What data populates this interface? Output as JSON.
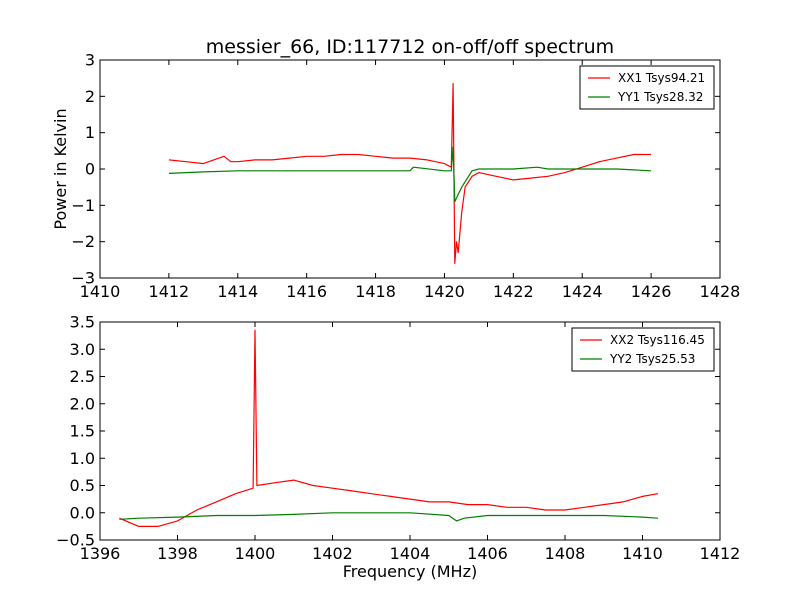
{
  "title": "messier_66, ID:117712 on-off/off spectrum",
  "chart_data": [
    {
      "type": "line",
      "title": "messier_66, ID:117712 on-off/off spectrum",
      "xlabel": "",
      "ylabel": "Power in Kelvin",
      "xlim": [
        1410,
        1428
      ],
      "ylim": [
        -3,
        3
      ],
      "xticks": [
        1410,
        1412,
        1414,
        1416,
        1418,
        1420,
        1422,
        1424,
        1426,
        1428
      ],
      "yticks": [
        -3,
        -2,
        -1,
        0,
        1,
        2,
        3
      ],
      "xtick_labels": [
        "1410",
        "1412",
        "1414",
        "1416",
        "1418",
        "1420",
        "1422",
        "1424",
        "1426",
        "1428"
      ],
      "ytick_labels": [
        "−3",
        "−2",
        "−1",
        "0",
        "1",
        "2",
        "3"
      ],
      "grid": false,
      "legend_position": "top-right",
      "series": [
        {
          "name": "XX1 Tsys94.21",
          "color": "#ff0000",
          "x": [
            1412.0,
            1412.5,
            1413.0,
            1413.3,
            1413.6,
            1413.8,
            1414.0,
            1414.5,
            1415.0,
            1415.5,
            1416.0,
            1416.5,
            1417.0,
            1417.5,
            1418.0,
            1418.5,
            1419.0,
            1419.5,
            1420.0,
            1420.2,
            1420.25,
            1420.3,
            1420.35,
            1420.4,
            1420.5,
            1420.6,
            1420.8,
            1421.0,
            1421.5,
            1422.0,
            1422.5,
            1423.0,
            1423.5,
            1424.0,
            1424.5,
            1425.0,
            1425.5,
            1426.0
          ],
          "y": [
            0.25,
            0.2,
            0.15,
            0.25,
            0.35,
            0.2,
            0.2,
            0.25,
            0.25,
            0.3,
            0.35,
            0.35,
            0.4,
            0.4,
            0.35,
            0.3,
            0.3,
            0.25,
            0.15,
            0.05,
            2.35,
            -2.6,
            -2.0,
            -2.3,
            -1.2,
            -0.5,
            -0.2,
            -0.1,
            -0.2,
            -0.3,
            -0.25,
            -0.2,
            -0.1,
            0.05,
            0.2,
            0.3,
            0.4,
            0.4
          ]
        },
        {
          "name": "YY1 Tsys28.32",
          "color": "#008000",
          "x": [
            1412.0,
            1413.0,
            1414.0,
            1415.0,
            1416.0,
            1417.0,
            1418.0,
            1419.0,
            1419.1,
            1420.0,
            1420.2,
            1420.25,
            1420.3,
            1420.4,
            1420.5,
            1420.8,
            1421.0,
            1422.0,
            1422.7,
            1423.0,
            1424.0,
            1425.0,
            1426.0
          ],
          "y": [
            -0.12,
            -0.08,
            -0.05,
            -0.05,
            -0.05,
            -0.05,
            -0.05,
            -0.05,
            0.05,
            -0.05,
            -0.05,
            0.6,
            -0.9,
            -0.7,
            -0.5,
            -0.05,
            0.0,
            0.0,
            0.05,
            0.0,
            0.0,
            0.0,
            -0.05
          ]
        }
      ]
    },
    {
      "type": "line",
      "title": "",
      "xlabel": "Frequency (MHz)",
      "ylabel": "",
      "xlim": [
        1396,
        1412
      ],
      "ylim": [
        -0.5,
        3.5
      ],
      "xticks": [
        1396,
        1398,
        1400,
        1402,
        1404,
        1406,
        1408,
        1410,
        1412
      ],
      "yticks": [
        -0.5,
        0.0,
        0.5,
        1.0,
        1.5,
        2.0,
        2.5,
        3.0,
        3.5
      ],
      "xtick_labels": [
        "1396",
        "1398",
        "1400",
        "1402",
        "1404",
        "1406",
        "1408",
        "1410",
        "1412"
      ],
      "ytick_labels": [
        "−0.5",
        "0.0",
        "0.5",
        "1.0",
        "1.5",
        "2.0",
        "2.5",
        "3.0",
        "3.5"
      ],
      "grid": false,
      "legend_position": "top-right",
      "series": [
        {
          "name": "XX2 Tsys116.45",
          "color": "#ff0000",
          "x": [
            1396.5,
            1397.0,
            1397.5,
            1398.0,
            1398.5,
            1399.0,
            1399.5,
            1399.95,
            1400.0,
            1400.05,
            1400.5,
            1401.0,
            1401.5,
            1402.0,
            1402.5,
            1403.0,
            1403.5,
            1404.0,
            1404.5,
            1405.0,
            1405.5,
            1406.0,
            1406.5,
            1407.0,
            1407.5,
            1408.0,
            1408.5,
            1409.0,
            1409.5,
            1410.0,
            1410.4
          ],
          "y": [
            -0.1,
            -0.25,
            -0.25,
            -0.15,
            0.05,
            0.2,
            0.35,
            0.45,
            3.35,
            0.5,
            0.55,
            0.6,
            0.5,
            0.45,
            0.4,
            0.35,
            0.3,
            0.25,
            0.2,
            0.2,
            0.15,
            0.15,
            0.1,
            0.1,
            0.05,
            0.05,
            0.1,
            0.15,
            0.2,
            0.3,
            0.35
          ]
        },
        {
          "name": "YY2 Tsys25.53",
          "color": "#008000",
          "x": [
            1396.5,
            1397.0,
            1398.0,
            1399.0,
            1400.0,
            1401.0,
            1402.0,
            1403.0,
            1404.0,
            1405.0,
            1405.2,
            1405.4,
            1406.0,
            1407.0,
            1408.0,
            1409.0,
            1410.0,
            1410.4
          ],
          "y": [
            -0.12,
            -0.1,
            -0.08,
            -0.05,
            -0.05,
            -0.03,
            0.0,
            0.0,
            0.0,
            -0.05,
            -0.15,
            -0.1,
            -0.05,
            -0.05,
            -0.05,
            -0.05,
            -0.08,
            -0.1
          ]
        }
      ]
    }
  ]
}
